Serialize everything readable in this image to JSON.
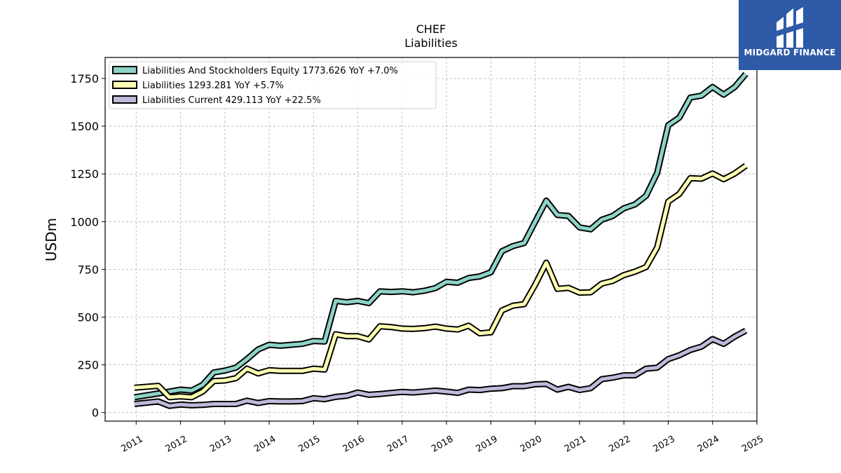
{
  "brand": {
    "name": "MIDGARD FINANCE",
    "bg_color": "#2e5aa8"
  },
  "chart_data": {
    "type": "line",
    "title": "CHEF",
    "subtitle": "Liabilities",
    "ylabel": "USDm",
    "xlabel": "",
    "ylim": [
      -45,
      1860
    ],
    "xlim": [
      2010.3,
      2025.0
    ],
    "yticks": [
      0,
      250,
      500,
      750,
      1000,
      1250,
      1500,
      1750
    ],
    "xticks": [
      2011,
      2012,
      2013,
      2014,
      2015,
      2016,
      2017,
      2018,
      2019,
      2020,
      2021,
      2022,
      2023,
      2024,
      2025
    ],
    "grid": true,
    "legend_position": "top-left",
    "series": [
      {
        "name": "Liabilities And Stockholders Equity",
        "legend": "Liabilities And Stockholders Equity  1773.626 YoY +7.0%",
        "color": "#8dd3c7",
        "points": [
          [
            2010.96,
            80
          ],
          [
            2011.5,
            100
          ],
          [
            2011.75,
            110
          ],
          [
            2012.0,
            120
          ],
          [
            2012.25,
            115
          ],
          [
            2012.5,
            145
          ],
          [
            2012.75,
            210
          ],
          [
            2013.0,
            220
          ],
          [
            2013.25,
            235
          ],
          [
            2013.5,
            280
          ],
          [
            2013.75,
            330
          ],
          [
            2014.0,
            355
          ],
          [
            2014.25,
            350
          ],
          [
            2014.5,
            355
          ],
          [
            2014.75,
            360
          ],
          [
            2015.0,
            375
          ],
          [
            2015.25,
            372
          ],
          [
            2015.5,
            585
          ],
          [
            2015.75,
            578
          ],
          [
            2016.0,
            585
          ],
          [
            2016.25,
            573
          ],
          [
            2016.5,
            635
          ],
          [
            2016.75,
            632
          ],
          [
            2017.0,
            635
          ],
          [
            2017.25,
            630
          ],
          [
            2017.5,
            638
          ],
          [
            2017.75,
            652
          ],
          [
            2018.0,
            685
          ],
          [
            2018.25,
            680
          ],
          [
            2018.5,
            705
          ],
          [
            2018.75,
            713
          ],
          [
            2019.0,
            735
          ],
          [
            2019.25,
            845
          ],
          [
            2019.5,
            872
          ],
          [
            2019.75,
            888
          ],
          [
            2020.0,
            1000
          ],
          [
            2020.25,
            1110
          ],
          [
            2020.5,
            1035
          ],
          [
            2020.75,
            1030
          ],
          [
            2021.0,
            970
          ],
          [
            2021.25,
            960
          ],
          [
            2021.5,
            1010
          ],
          [
            2021.75,
            1030
          ],
          [
            2022.0,
            1070
          ],
          [
            2022.25,
            1090
          ],
          [
            2022.5,
            1135
          ],
          [
            2022.75,
            1255
          ],
          [
            2023.0,
            1505
          ],
          [
            2023.25,
            1545
          ],
          [
            2023.5,
            1650
          ],
          [
            2023.75,
            1660
          ],
          [
            2024.0,
            1705
          ],
          [
            2024.25,
            1665
          ],
          [
            2024.5,
            1705
          ],
          [
            2024.75,
            1773.626
          ]
        ]
      },
      {
        "name": "Liabilities",
        "legend": "Liabilities  1293.281 YoY +5.7%",
        "color": "#ffffb3",
        "points": [
          [
            2010.96,
            130
          ],
          [
            2011.5,
            140
          ],
          [
            2011.75,
            80
          ],
          [
            2012.0,
            85
          ],
          [
            2012.25,
            80
          ],
          [
            2012.5,
            110
          ],
          [
            2012.75,
            165
          ],
          [
            2013.0,
            168
          ],
          [
            2013.25,
            180
          ],
          [
            2013.5,
            230
          ],
          [
            2013.75,
            205
          ],
          [
            2014.0,
            222
          ],
          [
            2014.25,
            218
          ],
          [
            2014.5,
            218
          ],
          [
            2014.75,
            218
          ],
          [
            2015.0,
            230
          ],
          [
            2015.25,
            225
          ],
          [
            2015.5,
            410
          ],
          [
            2015.75,
            400
          ],
          [
            2016.0,
            400
          ],
          [
            2016.25,
            383
          ],
          [
            2016.5,
            452
          ],
          [
            2016.75,
            448
          ],
          [
            2017.0,
            440
          ],
          [
            2017.25,
            438
          ],
          [
            2017.5,
            442
          ],
          [
            2017.75,
            450
          ],
          [
            2018.0,
            440
          ],
          [
            2018.25,
            435
          ],
          [
            2018.5,
            455
          ],
          [
            2018.75,
            415
          ],
          [
            2019.0,
            420
          ],
          [
            2019.25,
            535
          ],
          [
            2019.5,
            560
          ],
          [
            2019.75,
            568
          ],
          [
            2020.0,
            670
          ],
          [
            2020.25,
            785
          ],
          [
            2020.5,
            648
          ],
          [
            2020.75,
            653
          ],
          [
            2021.0,
            628
          ],
          [
            2021.25,
            630
          ],
          [
            2021.5,
            675
          ],
          [
            2021.75,
            690
          ],
          [
            2022.0,
            720
          ],
          [
            2022.25,
            738
          ],
          [
            2022.5,
            762
          ],
          [
            2022.75,
            865
          ],
          [
            2023.0,
            1105
          ],
          [
            2023.25,
            1145
          ],
          [
            2023.5,
            1228
          ],
          [
            2023.75,
            1225
          ],
          [
            2024.0,
            1252
          ],
          [
            2024.25,
            1222
          ],
          [
            2024.5,
            1252
          ],
          [
            2024.75,
            1293.281
          ]
        ]
      },
      {
        "name": "Liabilities Current",
        "legend": "Liabilities Current  429.113 YoY +22.5%",
        "color": "#bebada",
        "points": [
          [
            2010.96,
            45
          ],
          [
            2011.5,
            58
          ],
          [
            2011.75,
            35
          ],
          [
            2012.0,
            42
          ],
          [
            2012.25,
            38
          ],
          [
            2012.5,
            40
          ],
          [
            2012.75,
            45
          ],
          [
            2013.0,
            45
          ],
          [
            2013.25,
            45
          ],
          [
            2013.5,
            62
          ],
          [
            2013.75,
            50
          ],
          [
            2014.0,
            60
          ],
          [
            2014.25,
            58
          ],
          [
            2014.5,
            58
          ],
          [
            2014.75,
            60
          ],
          [
            2015.0,
            75
          ],
          [
            2015.25,
            70
          ],
          [
            2015.5,
            82
          ],
          [
            2015.75,
            88
          ],
          [
            2016.0,
            105
          ],
          [
            2016.25,
            93
          ],
          [
            2016.5,
            97
          ],
          [
            2016.75,
            103
          ],
          [
            2017.0,
            108
          ],
          [
            2017.25,
            105
          ],
          [
            2017.5,
            110
          ],
          [
            2017.75,
            115
          ],
          [
            2018.0,
            110
          ],
          [
            2018.25,
            103
          ],
          [
            2018.5,
            120
          ],
          [
            2018.75,
            118
          ],
          [
            2019.0,
            125
          ],
          [
            2019.25,
            128
          ],
          [
            2019.5,
            138
          ],
          [
            2019.75,
            138
          ],
          [
            2020.0,
            148
          ],
          [
            2020.25,
            150
          ],
          [
            2020.5,
            120
          ],
          [
            2020.75,
            135
          ],
          [
            2021.0,
            118
          ],
          [
            2021.25,
            128
          ],
          [
            2021.5,
            175
          ],
          [
            2021.75,
            183
          ],
          [
            2022.0,
            195
          ],
          [
            2022.25,
            195
          ],
          [
            2022.5,
            230
          ],
          [
            2022.75,
            235
          ],
          [
            2023.0,
            280
          ],
          [
            2023.25,
            300
          ],
          [
            2023.5,
            328
          ],
          [
            2023.75,
            345
          ],
          [
            2024.0,
            385
          ],
          [
            2024.25,
            360
          ],
          [
            2024.5,
            398
          ],
          [
            2024.75,
            429.113
          ]
        ]
      }
    ]
  }
}
